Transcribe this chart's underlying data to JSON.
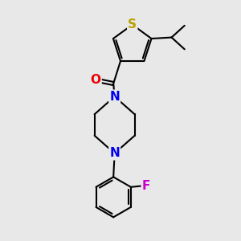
{
  "background_color": "#e8e8e8",
  "bond_color": "#000000",
  "atom_colors": {
    "S": "#b8a000",
    "N": "#0000ee",
    "O": "#ee0000",
    "F": "#cc00cc",
    "C": "#000000"
  },
  "bond_width": 1.5,
  "fig_width": 3.0,
  "fig_height": 3.0,
  "dpi": 100
}
